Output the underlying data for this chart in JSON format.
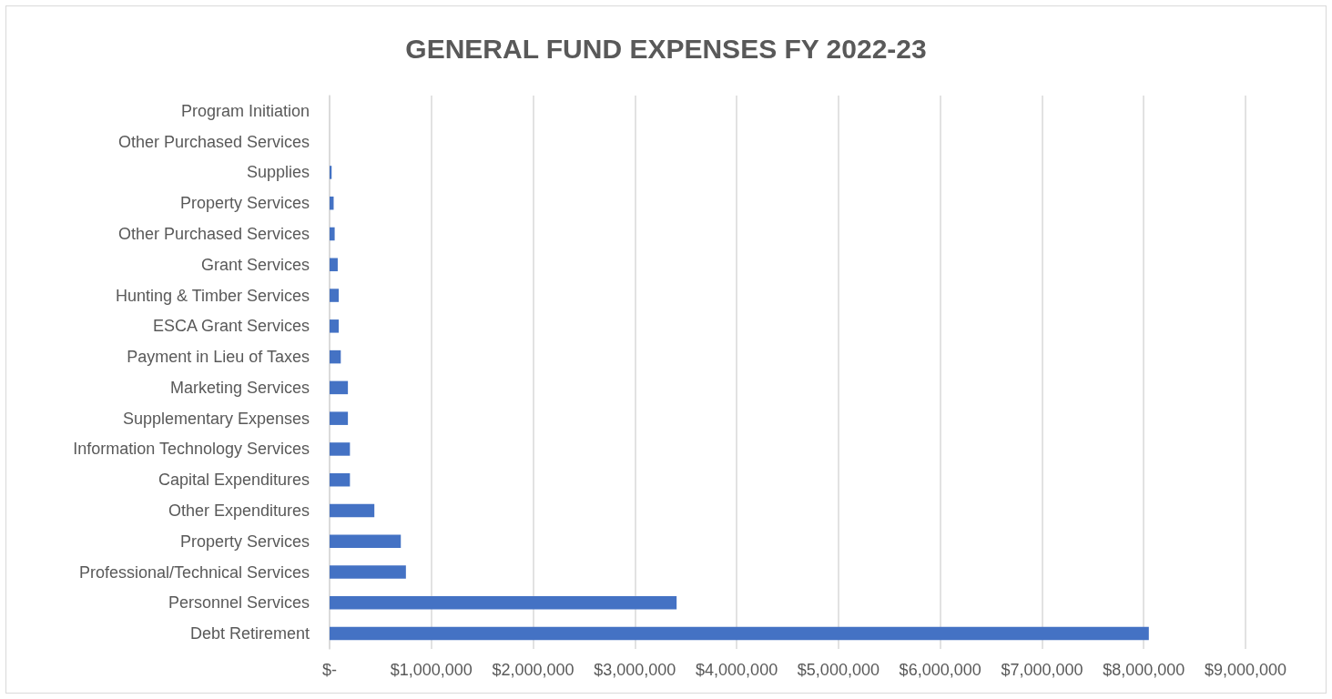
{
  "chart_data": {
    "type": "bar",
    "orientation": "horizontal",
    "title": "GENERAL FUND EXPENSES FY 2022-23",
    "categories": [
      "Program Initiation",
      "Other Purchased Services",
      "Supplies",
      "Property Services",
      "Other Purchased Services",
      "Grant Services",
      "Hunting & Timber Services",
      "ESCA Grant Services",
      "Payment in Lieu of Taxes",
      "Marketing Services",
      "Supplementary Expenses",
      "Information Technology Services",
      "Capital Expenditures",
      "Other Expenditures",
      "Property Services",
      "Professional/Technical Services",
      "Personnel Services",
      "Debt Retirement"
    ],
    "values": [
      0,
      0,
      20000,
      40000,
      50000,
      80000,
      90000,
      90000,
      110000,
      180000,
      180000,
      200000,
      200000,
      440000,
      700000,
      750000,
      3410000,
      8050000
    ],
    "color": "#4472c4",
    "xlim": [
      0,
      9000000
    ],
    "xticks": [
      {
        "value": 0,
        "label": "$-"
      },
      {
        "value": 1000000,
        "label": "$1,000,000"
      },
      {
        "value": 2000000,
        "label": "$2,000,000"
      },
      {
        "value": 3000000,
        "label": "$3,000,000"
      },
      {
        "value": 4000000,
        "label": "$4,000,000"
      },
      {
        "value": 5000000,
        "label": "$5,000,000"
      },
      {
        "value": 6000000,
        "label": "$6,000,000"
      },
      {
        "value": 7000000,
        "label": "$7,000,000"
      },
      {
        "value": 8000000,
        "label": "$8,000,000"
      },
      {
        "value": 9000000,
        "label": "$9,000,000"
      }
    ],
    "grid": "x"
  }
}
